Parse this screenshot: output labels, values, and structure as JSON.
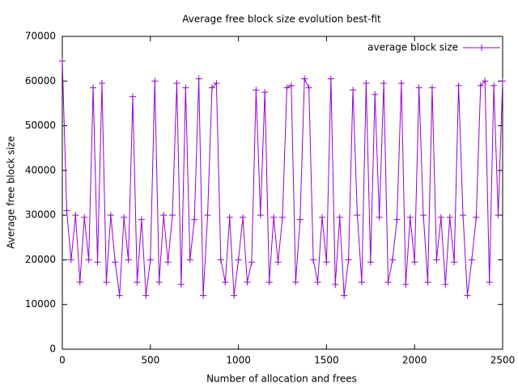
{
  "chart_data": {
    "type": "line",
    "title": "Average free block size evolution best-fit",
    "xlabel": "Number of allocation and frees",
    "ylabel": "Average free block size",
    "x": [
      0,
      25,
      50,
      75,
      100,
      125,
      150,
      175,
      200,
      225,
      250,
      275,
      300,
      325,
      350,
      375,
      400,
      425,
      450,
      475,
      500,
      525,
      550,
      575,
      600,
      625,
      650,
      675,
      700,
      725,
      750,
      775,
      800,
      825,
      850,
      875,
      900,
      925,
      950,
      975,
      1000,
      1025,
      1050,
      1075,
      1100,
      1125,
      1150,
      1175,
      1200,
      1225,
      1250,
      1275,
      1300,
      1325,
      1350,
      1375,
      1400,
      1425,
      1450,
      1475,
      1500,
      1525,
      1550,
      1575,
      1600,
      1625,
      1650,
      1675,
      1700,
      1725,
      1750,
      1775,
      1800,
      1825,
      1850,
      1875,
      1900,
      1925,
      1950,
      1975,
      2000,
      2025,
      2050,
      2075,
      2100,
      2125,
      2150,
      2175,
      2200,
      2225,
      2250,
      2275,
      2300,
      2325,
      2350,
      2375,
      2400,
      2425,
      2450,
      2475,
      2500
    ],
    "series": [
      {
        "name": "average block size",
        "color": "#9400d3",
        "values": [
          64500,
          31000,
          20000,
          30000,
          15000,
          29500,
          20000,
          58500,
          19500,
          59500,
          15000,
          30000,
          19500,
          12000,
          29500,
          20000,
          56500,
          15000,
          29000,
          12000,
          20000,
          60000,
          15000,
          30000,
          19500,
          30000,
          59500,
          14500,
          58500,
          20000,
          29000,
          60500,
          12000,
          30000,
          58500,
          59500,
          20000,
          15000,
          29500,
          12000,
          20000,
          29500,
          15000,
          19500,
          58000,
          30000,
          57500,
          15000,
          29500,
          19500,
          29500,
          58500,
          59000,
          15000,
          29000,
          60500,
          58500,
          20000,
          15000,
          29500,
          19500,
          60500,
          14500,
          29500,
          12000,
          20000,
          58000,
          30000,
          15000,
          59500,
          19500,
          57000,
          29500,
          59500,
          15000,
          20000,
          29000,
          59500,
          14500,
          29500,
          19500,
          58500,
          30000,
          15000,
          58500,
          20000,
          29500,
          14500,
          29500,
          19500,
          59000,
          30000,
          12000,
          20000,
          29500,
          59000,
          60000,
          15000,
          59000,
          30000,
          60000
        ]
      }
    ],
    "xlim": [
      0,
      2500
    ],
    "xticks": [
      0,
      500,
      1000,
      1500,
      2000,
      2500
    ],
    "ylim": [
      0,
      70000
    ],
    "yticks": [
      0,
      10000,
      20000,
      30000,
      40000,
      50000,
      60000,
      70000
    ],
    "legend": "top-right"
  }
}
